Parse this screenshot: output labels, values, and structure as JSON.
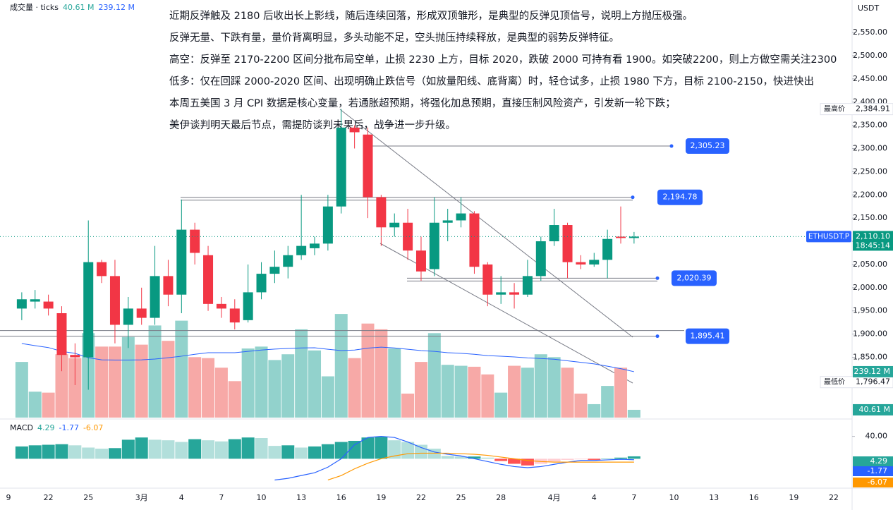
{
  "chart_data": {
    "type": "candlestick",
    "symbol": "ETHUSDT.P",
    "currency": "USDT",
    "notes": [
      "近期反弹触及 2180 后收出长上影线，随后连续回落，形成双顶雏形，是典型的反弹见顶信号，说明上方抛压极强。",
      "反弹无量、下跌有量，量价背离明显，多头动能不足，空头抛压持续释放，是典型的弱势反弹特征。",
      "高空：反弹至 2170-2200 区间分批布局空单，止损 2230 上方，目标 2020，跌破 2000 可持有看 1900。如突破2200，则上方做空需关注2300",
      "低多：仅在回踩 2000-2020 区间、出现明确止跌信号（如放量阳线、底背离）时，轻仓试多，止损 1980 下方，目标 2100-2150，快进快出",
      "本周五美国 3 月 CPI 数据是核心变量，若通胀超预期，将强化加息预期，直接压制风险资产，引发新一轮下跌；",
      "美伊谈判明天最后节点，需提防谈判未果后，战争进一步升级。"
    ],
    "xticks": [
      "9",
      "22",
      "25",
      "3月",
      "4",
      "7",
      "10",
      "13",
      "16",
      "19",
      "22",
      "25",
      "28",
      "4月",
      "4",
      "7",
      "10",
      "13",
      "16",
      "19",
      "22"
    ],
    "open": [
      1955,
      1970,
      1970,
      1945,
      1855,
      1850,
      2055,
      2025,
      1920,
      1955,
      1935,
      2025,
      1985,
      2125,
      2070,
      1965,
      1955,
      1930,
      1990,
      2030,
      2045,
      2070,
      2085,
      2095,
      2175,
      2345,
      2330,
      2195,
      2130,
      2140,
      2080,
      2040,
      2140,
      2145,
      2160,
      2050,
      1985,
      1990,
      1985,
      2025,
      2100,
      2135,
      2055,
      2050,
      2060,
      2110,
      2107
    ],
    "high": [
      1990,
      1995,
      1985,
      1960,
      1880,
      2145,
      2060,
      2060,
      1980,
      2000,
      2090,
      2060,
      2190,
      2140,
      2090,
      1980,
      1975,
      2050,
      2055,
      2080,
      2090,
      2200,
      2110,
      2200,
      2385,
      2350,
      2345,
      2200,
      2160,
      2170,
      2110,
      2195,
      2170,
      2195,
      2165,
      2055,
      2025,
      2010,
      2060,
      2110,
      2170,
      2140,
      2070,
      2075,
      2125,
      2175,
      2120
    ],
    "low": [
      1930,
      1955,
      1940,
      1820,
      1790,
      1780,
      2010,
      1880,
      1870,
      1920,
      1920,
      1960,
      1945,
      2050,
      1950,
      1935,
      1910,
      1925,
      1975,
      2010,
      2020,
      2060,
      2070,
      2080,
      2160,
      2300,
      2150,
      2090,
      2110,
      2060,
      2015,
      2025,
      2100,
      2130,
      2030,
      1960,
      1965,
      1955,
      1980,
      2015,
      2090,
      2020,
      2040,
      2045,
      2020,
      2095,
      2095
    ],
    "close": [
      1975,
      1975,
      1955,
      1855,
      1850,
      2055,
      2025,
      1920,
      1955,
      1935,
      2025,
      1985,
      2125,
      2075,
      1965,
      1955,
      1925,
      1990,
      2030,
      2045,
      2070,
      2090,
      2095,
      2175,
      2345,
      2335,
      2195,
      2130,
      2140,
      2080,
      2035,
      2140,
      2145,
      2160,
      2045,
      1985,
      1990,
      1985,
      2025,
      2100,
      2135,
      2055,
      2050,
      2060,
      2105,
      2107,
      2110.1
    ],
    "colors": {
      "up": "#089981",
      "down": "#f23645",
      "up_volume": "#92d2cc",
      "down_volume": "#f7a9a7"
    },
    "ylim": [
      1720,
      2620
    ],
    "yticks": [
      {
        "value": 2550,
        "label": "2,550.00"
      },
      {
        "value": 2500,
        "label": "2,500.00"
      },
      {
        "value": 2450,
        "label": "2,450.00"
      },
      {
        "value": 2400,
        "label": "2,400.00"
      },
      {
        "value": 2350,
        "label": "2,350.00"
      },
      {
        "value": 2300,
        "label": "2,300.00"
      },
      {
        "value": 2250,
        "label": "2,250.00"
      },
      {
        "value": 2200,
        "label": "2,200.00"
      },
      {
        "value": 2150,
        "label": "2,150.00"
      },
      {
        "value": 2100,
        "label": "2,100.00"
      },
      {
        "value": 2050,
        "label": "2,050.00"
      },
      {
        "value": 2000,
        "label": "2,000.00"
      },
      {
        "value": 1950,
        "label": "1,950.00"
      },
      {
        "value": 1900,
        "label": "1,900.00"
      },
      {
        "value": 1850,
        "label": "1,850.00"
      }
    ],
    "grid": false,
    "levels": [
      2305.23,
      2194.78,
      2020.39,
      1895.41
    ],
    "level_labels": [
      "2,305.23",
      "2,194.78",
      "2,020.39",
      "1,895.41"
    ],
    "high_name": "最高价",
    "high_value": 2384.91,
    "high_value_label": "2,384.91",
    "low_name": "最低价",
    "low_value": 1796.47,
    "low_value_label": "1,796.47",
    "last_value": 2110.1,
    "last_value_label": "2,110.10",
    "countdown": "18:45:14",
    "volume": {
      "legend": "成交量 · ticks",
      "ylim": [
        0,
        2176
      ],
      "values": [
        290,
        135,
        130,
        330,
        310,
        440,
        370,
        370,
        420,
        380,
        480,
        400,
        505,
        315,
        310,
        260,
        190,
        360,
        370,
        300,
        330,
        460,
        350,
        215,
        540,
        310,
        490,
        460,
        360,
        125,
        290,
        440,
        275,
        270,
        265,
        225,
        130,
        270,
        260,
        330,
        315,
        260,
        125,
        70,
        165,
        260,
        40.61
      ],
      "ma": [
        386,
        375,
        365,
        345,
        335,
        312,
        301,
        300,
        300,
        301,
        305,
        312,
        320,
        330,
        338,
        338,
        338,
        345,
        352,
        357,
        360,
        363,
        364,
        356,
        349,
        352,
        362,
        367,
        363,
        356,
        349,
        345,
        338,
        335,
        330,
        323,
        320,
        316,
        311,
        308,
        304,
        296,
        288,
        280,
        268,
        255,
        239.12
      ],
      "ma_color": "#2962ff",
      "value_label": "40.61 M",
      "ma_label": "239.12 M"
    },
    "macd": {
      "name": "MACD",
      "ylim": [
        -50,
        66
      ],
      "yticks": [
        {
          "value": 40,
          "label": "40.00"
        }
      ],
      "histogram": [
        22,
        24,
        25,
        26,
        24,
        20,
        18,
        19,
        34,
        38,
        34,
        33,
        30,
        35,
        33,
        31,
        35,
        38,
        37,
        23,
        24,
        20,
        22,
        26,
        30,
        32,
        38,
        39,
        33,
        30,
        25,
        18,
        5,
        4,
        4,
        2,
        -4,
        -9,
        -12,
        -9,
        -5,
        -2,
        -1,
        -2,
        0,
        2,
        4.29
      ],
      "macd": [
        null,
        null,
        null,
        null,
        null,
        null,
        null,
        null,
        null,
        null,
        null,
        null,
        null,
        null,
        null,
        null,
        null,
        null,
        null,
        -38,
        -35,
        -30,
        -25,
        -15,
        0,
        25,
        38,
        40,
        38,
        30,
        20,
        12,
        8,
        5,
        0,
        -5,
        -10,
        -14,
        -16,
        -14,
        -10,
        -6,
        -3,
        -3,
        -2,
        -1,
        -1.77
      ],
      "signal": [
        null,
        null,
        null,
        null,
        null,
        null,
        null,
        null,
        null,
        null,
        null,
        null,
        null,
        null,
        null,
        null,
        null,
        null,
        null,
        null,
        null,
        null,
        null,
        -38,
        -30,
        -18,
        -8,
        0,
        5,
        9,
        10,
        10,
        10,
        9,
        8,
        6,
        3,
        0,
        -3,
        -5,
        -6,
        -6,
        -6,
        -6,
        -6,
        -6,
        -6.07
      ],
      "macd_color": "#2962ff",
      "signal_color": "#ff9800"
    }
  }
}
